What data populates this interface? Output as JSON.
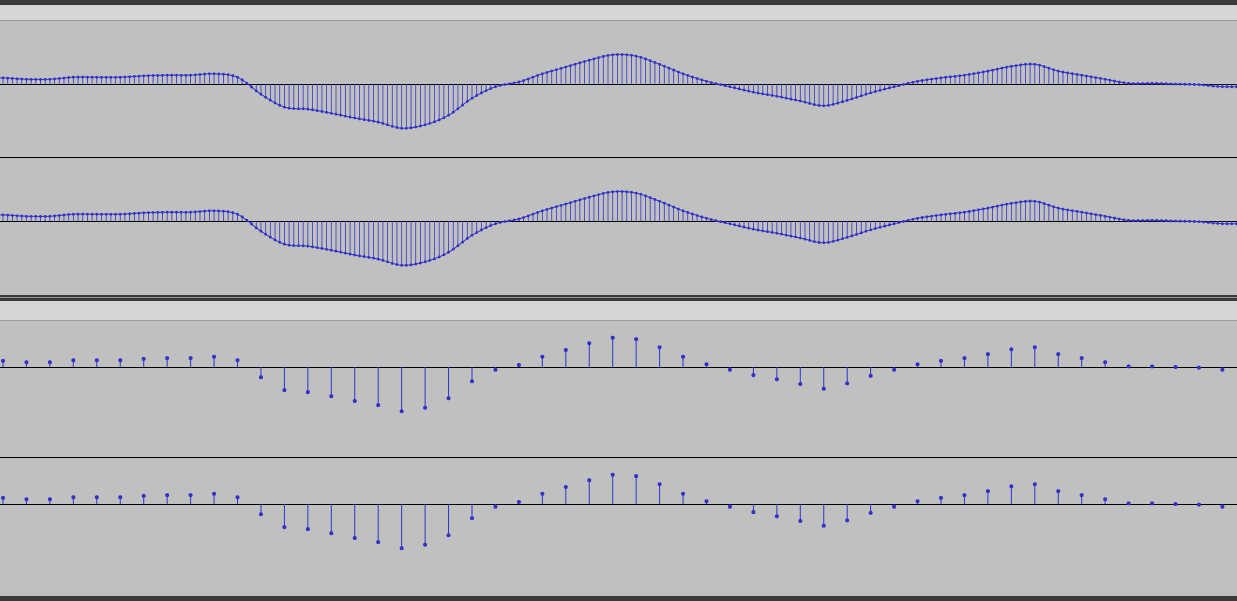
{
  "tracks": [
    {
      "samples": [
        0.09,
        0.07,
        0.07,
        0.1,
        0.1,
        0.1,
        0.12,
        0.13,
        0.13,
        0.15,
        0.1,
        -0.15,
        -0.34,
        -0.37,
        -0.43,
        -0.5,
        -0.56,
        -0.65,
        -0.6,
        -0.46,
        -0.21,
        -0.04,
        0.03,
        0.15,
        0.25,
        0.35,
        0.43,
        0.41,
        0.29,
        0.15,
        0.04,
        -0.04,
        -0.12,
        -0.18,
        -0.25,
        -0.32,
        -0.24,
        -0.13,
        -0.04,
        0.04,
        0.09,
        0.13,
        0.19,
        0.26,
        0.29,
        0.19,
        0.13,
        0.07,
        0.01,
        0.01,
        0.0,
        -0.01,
        -0.04
      ]
    }
  ]
}
